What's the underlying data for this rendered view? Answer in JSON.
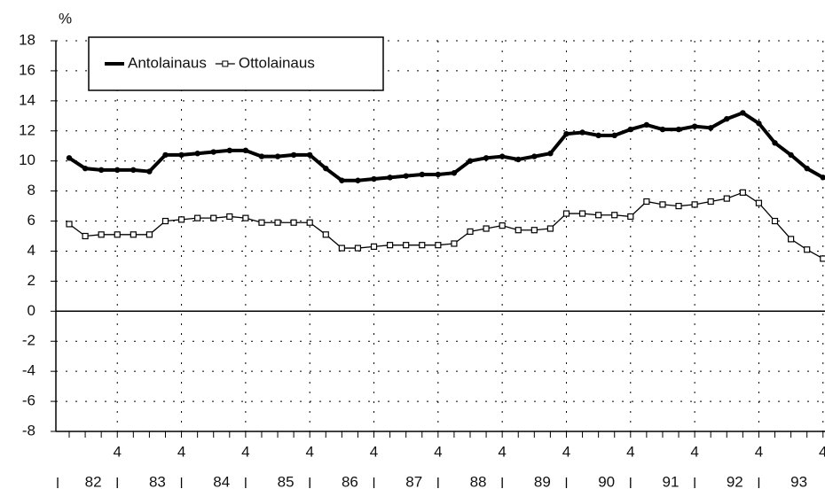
{
  "chart_data": {
    "type": "line",
    "y_label": "%",
    "categories": [
      null,
      null,
      null,
      "4",
      null,
      null,
      null,
      "4",
      null,
      null,
      null,
      "4",
      null,
      null,
      null,
      "4",
      null,
      null,
      null,
      "4",
      null,
      null,
      null,
      "4",
      null,
      null,
      null,
      "4",
      null,
      null,
      null,
      "4",
      null,
      null,
      null,
      "4",
      null,
      null,
      null,
      "4",
      null,
      null,
      null,
      "4",
      null,
      null,
      null,
      "4"
    ],
    "year_labels": [
      "82",
      "83",
      "84",
      "85",
      "86",
      "87",
      "88",
      "89",
      "90",
      "91",
      "92",
      "93"
    ],
    "series": [
      {
        "name": "Antolainaus",
        "color": "#000000",
        "values": [
          10.2,
          9.5,
          9.4,
          9.4,
          9.4,
          9.3,
          10.4,
          10.4,
          10.5,
          10.6,
          10.7,
          10.7,
          10.3,
          10.3,
          10.4,
          10.4,
          9.5,
          8.7,
          8.7,
          8.8,
          8.9,
          9.0,
          9.1,
          9.1,
          9.2,
          10.0,
          10.2,
          10.3,
          10.1,
          10.3,
          10.5,
          11.8,
          11.9,
          11.7,
          11.7,
          12.1,
          12.4,
          12.1,
          12.1,
          12.3,
          12.2,
          12.8,
          13.2,
          12.5,
          11.2,
          10.4,
          9.5,
          8.9
        ]
      },
      {
        "name": "Ottolainaus",
        "color": "#000000",
        "values": [
          5.8,
          5.0,
          5.1,
          5.1,
          5.1,
          5.1,
          6.0,
          6.1,
          6.2,
          6.2,
          6.3,
          6.2,
          5.9,
          5.9,
          5.9,
          5.9,
          5.1,
          4.2,
          4.2,
          4.3,
          4.4,
          4.4,
          4.4,
          4.4,
          4.5,
          5.3,
          5.5,
          5.7,
          5.4,
          5.4,
          5.5,
          6.5,
          6.5,
          6.4,
          6.4,
          6.3,
          7.3,
          7.1,
          7.0,
          7.1,
          7.3,
          7.5,
          7.9,
          7.2,
          6.0,
          4.8,
          4.1,
          3.5
        ]
      }
    ],
    "ylim": [
      -8,
      18
    ],
    "yticks": [
      -8,
      -6,
      -4,
      -2,
      0,
      2,
      4,
      6,
      8,
      10,
      12,
      14,
      16,
      18
    ],
    "grid": true,
    "legend": "upper left"
  }
}
